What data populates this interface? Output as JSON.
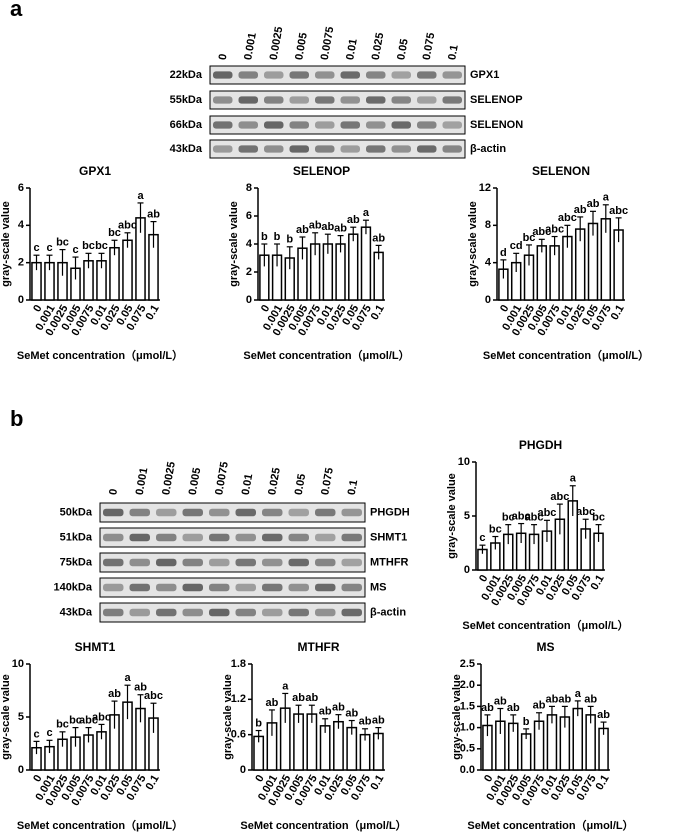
{
  "panel_labels": [
    "a",
    "b"
  ],
  "blots": [
    {
      "lanes": [
        "0",
        "0.001",
        "0.0025",
        "0.005",
        "0.0075",
        "0.01",
        "0.025",
        "0.05",
        "0.075",
        "0.1"
      ],
      "rows": [
        {
          "kda": "22kDa",
          "name": "GPX1"
        },
        {
          "kda": "55kDa",
          "name": "SELENOP"
        },
        {
          "kda": "66kDa",
          "name": "SELENON"
        },
        {
          "kda": "43kDa",
          "name": "β-actin"
        }
      ]
    },
    {
      "lanes": [
        "0",
        "0.001",
        "0.0025",
        "0.005",
        "0.0075",
        "0.01",
        "0.025",
        "0.05",
        "0.075",
        "0.1"
      ],
      "rows": [
        {
          "kda": "50kDa",
          "name": "PHGDH"
        },
        {
          "kda": "51kDa",
          "name": "SHMT1"
        },
        {
          "kda": "75kDa",
          "name": "MTHFR"
        },
        {
          "kda": "140kDa",
          "name": "MS"
        },
        {
          "kda": "43kDa",
          "name": "β-actin"
        }
      ]
    }
  ],
  "chart_data": [
    {
      "type": "bar",
      "title": "GPX1",
      "ylabel": "gray-scale value",
      "xlabel": "SeMet concentration（μmol/L）",
      "categories": [
        "0",
        "0.001",
        "0.0025",
        "0.005",
        "0.0075",
        "0.01",
        "0.025",
        "0.05",
        "0.075",
        "0.1"
      ],
      "values": [
        2.0,
        2.0,
        2.0,
        1.7,
        2.1,
        2.1,
        2.8,
        3.2,
        4.4,
        3.5
      ],
      "errors": [
        0.4,
        0.4,
        0.7,
        0.6,
        0.4,
        0.4,
        0.4,
        0.4,
        0.8,
        0.7
      ],
      "annotations": [
        "c",
        "c",
        "bc",
        "c",
        "bc",
        "bc",
        "bc",
        "abc",
        "a",
        "ab"
      ],
      "color": "#ffffff",
      "edgecolor": "#000000",
      "ylim": [
        0,
        6
      ],
      "yticks": [
        0,
        2,
        4,
        6
      ]
    },
    {
      "type": "bar",
      "title": "SELENOP",
      "ylabel": "gray-scale value",
      "xlabel": "SeMet concentration（μmol/L）",
      "categories": [
        "0",
        "0.001",
        "0.0025",
        "0.005",
        "0.0075",
        "0.01",
        "0.025",
        "0.05",
        "0.075",
        "0.1"
      ],
      "values": [
        3.2,
        3.2,
        3.0,
        3.7,
        4.0,
        4.0,
        4.0,
        4.7,
        5.2,
        3.4
      ],
      "errors": [
        0.8,
        0.8,
        0.8,
        0.8,
        0.8,
        0.7,
        0.6,
        0.5,
        0.5,
        0.5
      ],
      "annotations": [
        "b",
        "b",
        "b",
        "ab",
        "ab",
        "ab",
        "ab",
        "ab",
        "a",
        "ab"
      ],
      "color": "#ffffff",
      "edgecolor": "#000000",
      "ylim": [
        0,
        8
      ],
      "yticks": [
        0,
        2,
        4,
        6,
        8
      ]
    },
    {
      "type": "bar",
      "title": "SELENON",
      "ylabel": "gray-scale value",
      "xlabel": "SeMet concentration（μmol/L）",
      "categories": [
        "0",
        "0.001",
        "0.0025",
        "0.005",
        "0.0075",
        "0.01",
        "0.025",
        "0.05",
        "0.075",
        "0.1"
      ],
      "values": [
        3.3,
        4.0,
        4.8,
        5.8,
        5.8,
        6.8,
        7.6,
        8.2,
        8.7,
        7.5
      ],
      "errors": [
        1.0,
        1.0,
        1.1,
        0.7,
        1.0,
        1.2,
        1.3,
        1.3,
        1.5,
        1.3
      ],
      "annotations": [
        "d",
        "cd",
        "bc",
        "abc",
        "abc",
        "abc",
        "ab",
        "ab",
        "a",
        "abc"
      ],
      "color": "#ffffff",
      "edgecolor": "#000000",
      "ylim": [
        0,
        12
      ],
      "yticks": [
        0,
        4,
        8,
        12
      ]
    },
    {
      "type": "bar",
      "title": "PHGDH",
      "ylabel": "gray-scale value",
      "xlabel": "SeMet concentration（μmol/L）",
      "categories": [
        "0",
        "0.001",
        "0.0025",
        "0.005",
        "0.0075",
        "0.01",
        "0.025",
        "0.05",
        "0.075",
        "0.1"
      ],
      "values": [
        1.9,
        2.5,
        3.3,
        3.4,
        3.3,
        3.6,
        4.7,
        6.4,
        3.8,
        3.4
      ],
      "errors": [
        0.4,
        0.6,
        0.9,
        0.9,
        0.9,
        1.0,
        1.4,
        1.4,
        0.9,
        0.8
      ],
      "annotations": [
        "c",
        "bc",
        "bc",
        "abc",
        "abc",
        "abc",
        "abc",
        "a",
        "abc",
        "bc"
      ],
      "color": "#ffffff",
      "edgecolor": "#000000",
      "ylim": [
        0,
        10
      ],
      "yticks": [
        0,
        5,
        10
      ]
    },
    {
      "type": "bar",
      "title": "SHMT1",
      "ylabel": "gray-scale value",
      "xlabel": "SeMet concentration（μmol/L）",
      "categories": [
        "0",
        "0.001",
        "0.0025",
        "0.005",
        "0.0075",
        "0.01",
        "0.025",
        "0.05",
        "0.075",
        "0.1"
      ],
      "values": [
        2.1,
        2.2,
        2.9,
        3.1,
        3.3,
        3.6,
        5.2,
        6.4,
        5.8,
        4.9
      ],
      "errors": [
        0.6,
        0.6,
        0.7,
        0.9,
        0.7,
        0.7,
        1.3,
        1.6,
        1.3,
        1.4
      ],
      "annotations": [
        "c",
        "c",
        "bc",
        "bc",
        "abc",
        "abc",
        "ab",
        "a",
        "ab",
        "abc"
      ],
      "color": "#ffffff",
      "edgecolor": "#000000",
      "ylim": [
        0,
        10
      ],
      "yticks": [
        0,
        5,
        10
      ]
    },
    {
      "type": "bar",
      "title": "MTHFR",
      "ylabel": "gray-scale value",
      "xlabel": "SeMet concentration（μmol/L）",
      "categories": [
        "0",
        "0.001",
        "0.0025",
        "0.005",
        "0.0075",
        "0.01",
        "0.025",
        "0.05",
        "0.075",
        "0.1"
      ],
      "values": [
        0.57,
        0.8,
        1.05,
        0.95,
        0.95,
        0.75,
        0.82,
        0.72,
        0.6,
        0.62
      ],
      "errors": [
        0.1,
        0.22,
        0.25,
        0.15,
        0.15,
        0.12,
        0.12,
        0.12,
        0.1,
        0.1
      ],
      "annotations": [
        "b",
        "ab",
        "a",
        "ab",
        "ab",
        "ab",
        "ab",
        "ab",
        "ab",
        "ab"
      ],
      "color": "#ffffff",
      "edgecolor": "#000000",
      "ylim": [
        0,
        1.8
      ],
      "yticks": [
        0,
        0.6,
        1.2,
        1.8
      ]
    },
    {
      "type": "bar",
      "title": "MS",
      "ylabel": "gray-scale value",
      "xlabel": "SeMet concentration（μmol/L）",
      "categories": [
        "0",
        "0.001",
        "0.0025",
        "0.005",
        "0.0075",
        "0.01",
        "0.025",
        "0.05",
        "0.075",
        "0.1"
      ],
      "values": [
        1.05,
        1.15,
        1.1,
        0.85,
        1.15,
        1.3,
        1.25,
        1.45,
        1.3,
        0.98
      ],
      "errors": [
        0.25,
        0.3,
        0.2,
        0.12,
        0.2,
        0.2,
        0.25,
        0.18,
        0.2,
        0.15
      ],
      "annotations": [
        "ab",
        "ab",
        "ab",
        "b",
        "ab",
        "ab",
        "ab",
        "a",
        "ab",
        "ab"
      ],
      "color": "#ffffff",
      "edgecolor": "#000000",
      "ylim": [
        0,
        2.5
      ],
      "yticks": [
        {
          "value": 0,
          "label": "0.0"
        },
        0.5,
        {
          "value": 1,
          "label": "1.0"
        },
        1.5,
        {
          "value": 2,
          "label": "2.0"
        },
        2.5
      ]
    }
  ]
}
